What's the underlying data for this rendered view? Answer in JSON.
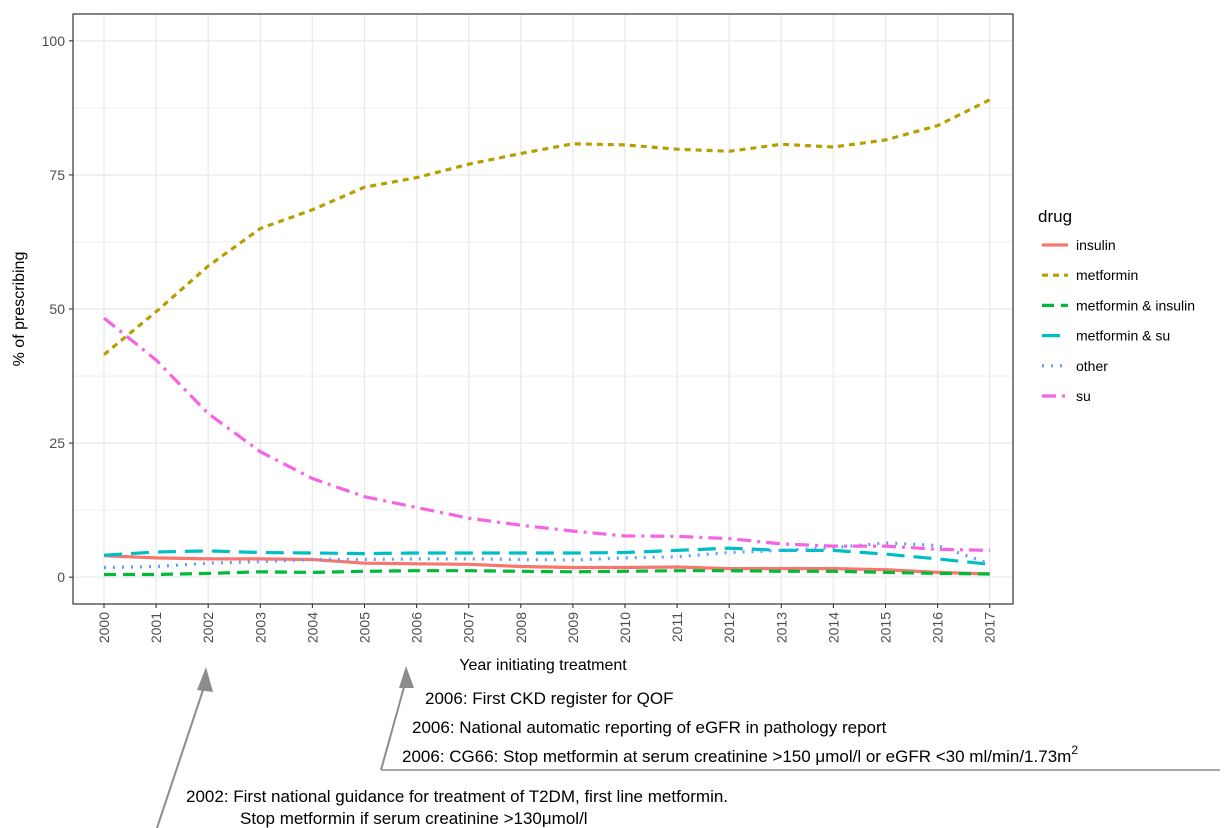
{
  "chart_data": {
    "type": "line",
    "xlabel": "Year initiating treatment",
    "ylabel": "% of prescribing",
    "x": [
      "2000",
      "2001",
      "2002",
      "2003",
      "2004",
      "2005",
      "2006",
      "2007",
      "2008",
      "2009",
      "2010",
      "2011",
      "2012",
      "2013",
      "2014",
      "2015",
      "2016",
      "2017"
    ],
    "ylim": [
      -5,
      105
    ],
    "yticks": [
      0,
      25,
      50,
      75,
      100
    ],
    "grid": true,
    "legend_title": "drug",
    "legend_position": "right",
    "series": [
      {
        "name": "insulin",
        "color": "#F8766D",
        "dash": "solid",
        "values": [
          4.0,
          3.6,
          3.4,
          3.4,
          3.3,
          2.6,
          2.5,
          2.4,
          2.0,
          1.8,
          1.8,
          1.9,
          1.6,
          1.6,
          1.6,
          1.4,
          0.9,
          0.6
        ]
      },
      {
        "name": "metformin",
        "color": "#B79F00",
        "dash": "short-dash",
        "values": [
          41.5,
          49.5,
          58.0,
          65.0,
          68.5,
          72.7,
          74.5,
          77.0,
          79.0,
          80.8,
          80.6,
          79.8,
          79.4,
          80.7,
          80.2,
          81.5,
          84.2,
          89.0
        ]
      },
      {
        "name": "metformin & insulin",
        "color": "#00BA38",
        "dash": "dash",
        "values": [
          0.5,
          0.5,
          0.7,
          1.0,
          0.9,
          1.1,
          1.2,
          1.2,
          1.1,
          1.0,
          1.1,
          1.2,
          1.2,
          1.1,
          1.1,
          0.9,
          0.7,
          0.6
        ]
      },
      {
        "name": "metformin & su",
        "color": "#00BFC4",
        "dash": "long-dash",
        "values": [
          4.1,
          4.7,
          4.9,
          4.6,
          4.5,
          4.4,
          4.5,
          4.5,
          4.5,
          4.5,
          4.6,
          5.0,
          5.4,
          5.0,
          5.0,
          4.3,
          3.4,
          2.4
        ]
      },
      {
        "name": "other",
        "color": "#619CFF",
        "dash": "dotted",
        "values": [
          1.8,
          2.0,
          2.6,
          2.9,
          3.3,
          3.3,
          3.4,
          3.4,
          3.3,
          3.2,
          3.6,
          3.8,
          4.6,
          5.0,
          5.5,
          6.4,
          5.9,
          2.5
        ]
      },
      {
        "name": "su",
        "color": "#F564E3",
        "dash": "dash-dot",
        "values": [
          48.3,
          40.5,
          30.5,
          23.4,
          18.4,
          15.0,
          13.0,
          11.0,
          9.7,
          8.6,
          7.7,
          7.6,
          7.2,
          6.2,
          5.8,
          5.8,
          5.2,
          5.0
        ]
      }
    ]
  },
  "annotations": {
    "note_2006_line1": "2006: First CKD register for QOF",
    "note_2006_line2": "2006: National automatic reporting of eGFR in pathology report",
    "note_2006_line3": "2006: CG66: Stop metformin at serum creatinine >150 μmol/l or eGFR <30 ml/min/1.73m",
    "note_2006_line3_sup": "2",
    "note_2002_line1": "2002: First national guidance for treatment of T2DM, first line metformin.",
    "note_2002_line2": "Stop metformin if serum creatinine >130μmol/l"
  },
  "colors": {
    "arrow": "#8c8c8c",
    "panel_border": "#333333",
    "grid": "#ebebeb"
  }
}
